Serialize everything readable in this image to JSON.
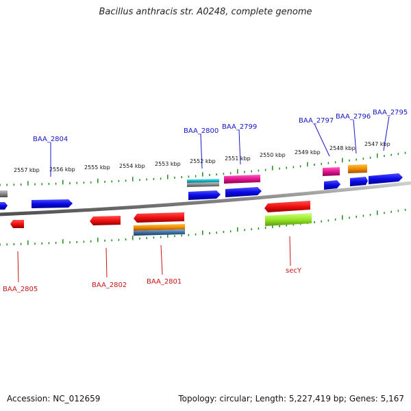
{
  "title": "Bacillus anthracis str. A0248, complete genome",
  "footer": {
    "accession": "Accession: NC_012659",
    "summary": "Topology: circular; Length: 5,227,419 bp; Genes: 5,167"
  },
  "colors": {
    "backbone": "#888888",
    "ticks": "#1a8a1a",
    "forward_gene": "#1a1ae6",
    "reverse_gene": "#e61414",
    "magenta": "#e0148c",
    "orange": "#f08c00",
    "cyan": "#14b4c8",
    "gray": "#7a7a7a",
    "lime": "#96e628",
    "steel": "#3c6ea0",
    "label_top": "#1414c8",
    "label_bottom": "#c81414"
  },
  "scale_labels": [
    "2557 kbp",
    "2556 kbp",
    "2555 kbp",
    "2554 kbp",
    "2553 kbp",
    "2552 kbp",
    "2551 kbp",
    "2550 kbp",
    "2549 kbp",
    "2548 kbp",
    "2547 kbp"
  ],
  "top_gene_labels": [
    "BAA_2804",
    "BAA_2800",
    "BAA_2799",
    "BAA_2797",
    "BAA_2796",
    "BAA_2795"
  ],
  "bottom_gene_labels": [
    "BAA_2805",
    "BAA_2802",
    "BAA_2801",
    "secY"
  ]
}
